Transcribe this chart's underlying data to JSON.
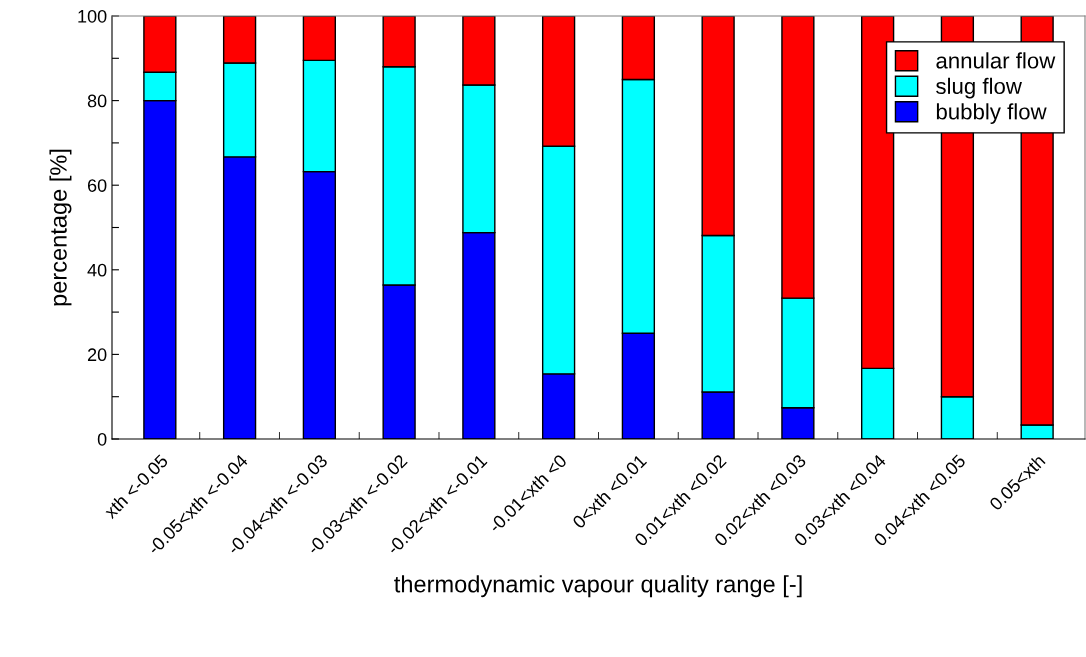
{
  "chart_data": {
    "type": "bar",
    "stacked": true,
    "xlabel": "thermodynamic vapour quality range [-]",
    "ylabel": "percentage [%]",
    "categories": [
      "xth <-0.05",
      "-0.05<xth <-0.04",
      "-0.04<xth <-0.03",
      "-0.03<xth <-0.02",
      "-0.02<xth <-0.01",
      "-0.01<xth <0",
      "0<xth <0.01",
      "0.01<xth <0.02",
      "0.02<xth <0.03",
      "0.03<xth <0.04",
      "0.04<xth <0.05",
      "0.05<xth"
    ],
    "series": [
      {
        "name": "bubbly flow",
        "color": "#0000ff",
        "values": [
          80,
          66.7,
          63.2,
          36.4,
          48.8,
          15.4,
          25,
          11.1,
          7.4,
          0,
          0,
          0
        ]
      },
      {
        "name": "slug flow",
        "color": "#00ffff",
        "values": [
          6.7,
          22.2,
          26.3,
          51.6,
          34.9,
          53.8,
          60,
          37,
          25.9,
          16.7,
          10,
          3.3
        ]
      },
      {
        "name": "annular flow",
        "color": "#ff0000",
        "values": [
          13.3,
          11.1,
          10.5,
          12,
          16.3,
          30.8,
          15,
          51.9,
          66.7,
          83.3,
          90,
          96.7
        ]
      }
    ],
    "ylim": [
      0,
      100
    ],
    "yticks": [
      0,
      {
        "value": 10,
        "label": null
      },
      20,
      {
        "value": 30,
        "label": null
      },
      40,
      {
        "value": 50,
        "label": null
      },
      60,
      {
        "value": 70,
        "label": null
      },
      80,
      {
        "value": 90,
        "label": null
      },
      100
    ],
    "grid": false,
    "legend": "top right"
  }
}
